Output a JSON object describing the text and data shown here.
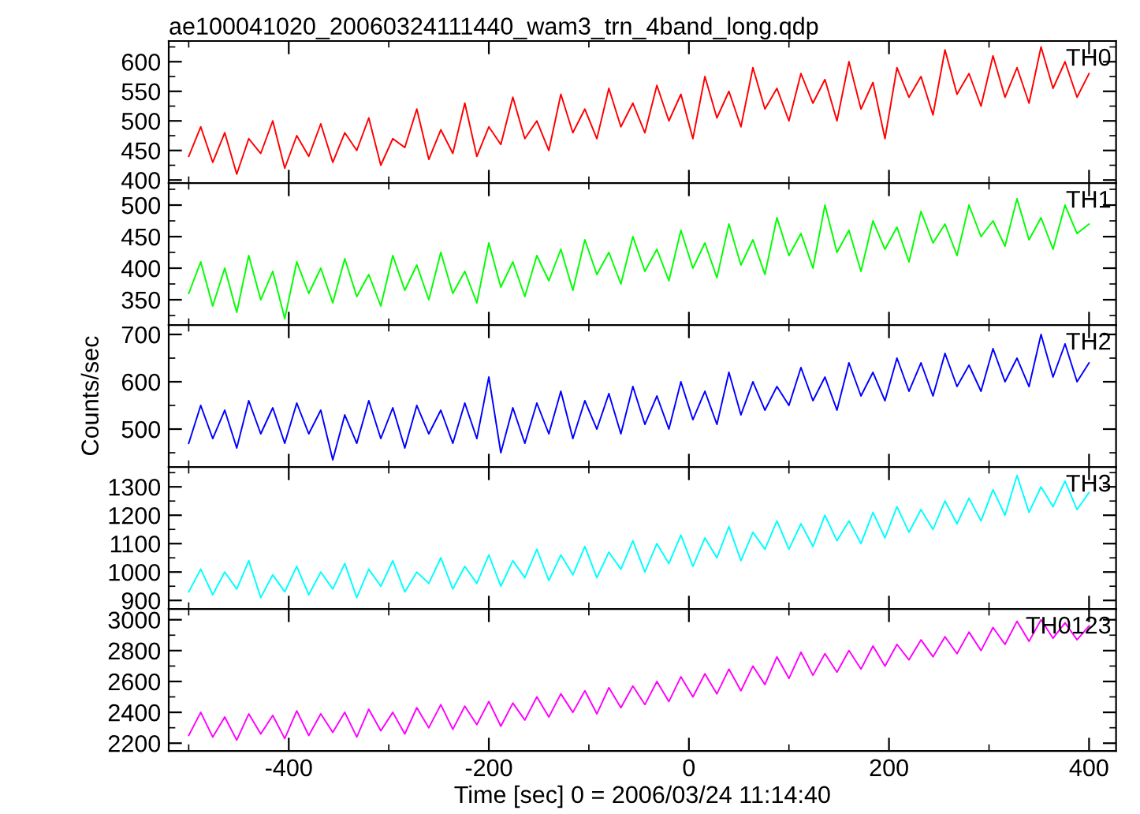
{
  "chart_data": [
    {
      "type": "line",
      "title": "ae100041020_20060324111440_wam3_trn_4band_long.qdp",
      "xlim": [
        -520,
        427
      ],
      "ylim": [
        395,
        635
      ],
      "yticks": [
        400,
        450,
        500,
        550,
        600
      ],
      "xticks": [
        -400,
        -200,
        0,
        200,
        400
      ],
      "tick_labels": "y",
      "legend": false,
      "grid": false,
      "x": [
        -500,
        -488,
        -476,
        -464,
        -452,
        -440,
        -428,
        -416,
        -404,
        -392,
        -380,
        -368,
        -356,
        -344,
        -332,
        -320,
        -308,
        -296,
        -284,
        -272,
        -260,
        -248,
        -236,
        -224,
        -212,
        -200,
        -188,
        -176,
        -164,
        -152,
        -140,
        -128,
        -116,
        -104,
        -92,
        -80,
        -68,
        -56,
        -44,
        -32,
        -20,
        -8,
        4,
        16,
        28,
        40,
        52,
        64,
        76,
        88,
        100,
        112,
        124,
        136,
        148,
        160,
        172,
        184,
        196,
        208,
        220,
        232,
        244,
        256,
        268,
        280,
        292,
        304,
        316,
        328,
        340,
        352,
        364,
        376,
        388,
        400
      ],
      "series": [
        {
          "name": "TH0",
          "color": "#ff0000",
          "values": [
            440,
            490,
            430,
            480,
            410,
            470,
            445,
            500,
            420,
            475,
            440,
            495,
            430,
            480,
            450,
            505,
            425,
            470,
            455,
            520,
            435,
            485,
            445,
            530,
            440,
            490,
            460,
            540,
            470,
            500,
            450,
            545,
            480,
            520,
            470,
            555,
            490,
            530,
            480,
            560,
            500,
            545,
            470,
            575,
            505,
            550,
            490,
            590,
            520,
            555,
            500,
            580,
            530,
            570,
            500,
            600,
            520,
            565,
            470,
            590,
            540,
            575,
            510,
            620,
            545,
            580,
            525,
            610,
            540,
            590,
            530,
            625,
            555,
            600,
            540,
            580
          ]
        }
      ]
    },
    {
      "type": "line",
      "xlim": [
        -520,
        427
      ],
      "ylim": [
        310,
        535
      ],
      "yticks": [
        350,
        400,
        450,
        500
      ],
      "xticks": [
        -400,
        -200,
        0,
        200,
        400
      ],
      "tick_labels": "y",
      "legend": false,
      "grid": false,
      "x": [
        -500,
        -488,
        -476,
        -464,
        -452,
        -440,
        -428,
        -416,
        -404,
        -392,
        -380,
        -368,
        -356,
        -344,
        -332,
        -320,
        -308,
        -296,
        -284,
        -272,
        -260,
        -248,
        -236,
        -224,
        -212,
        -200,
        -188,
        -176,
        -164,
        -152,
        -140,
        -128,
        -116,
        -104,
        -92,
        -80,
        -68,
        -56,
        -44,
        -32,
        -20,
        -8,
        4,
        16,
        28,
        40,
        52,
        64,
        76,
        88,
        100,
        112,
        124,
        136,
        148,
        160,
        172,
        184,
        196,
        208,
        220,
        232,
        244,
        256,
        268,
        280,
        292,
        304,
        316,
        328,
        340,
        352,
        364,
        376,
        388,
        400
      ],
      "series": [
        {
          "name": "TH1",
          "color": "#00ff00",
          "values": [
            360,
            410,
            340,
            400,
            330,
            420,
            350,
            395,
            320,
            410,
            360,
            400,
            345,
            415,
            355,
            390,
            340,
            420,
            365,
            405,
            350,
            425,
            360,
            395,
            345,
            440,
            370,
            410,
            355,
            420,
            380,
            430,
            365,
            445,
            390,
            425,
            375,
            450,
            395,
            430,
            380,
            460,
            400,
            440,
            385,
            470,
            405,
            445,
            390,
            480,
            420,
            455,
            400,
            500,
            425,
            460,
            395,
            475,
            430,
            465,
            410,
            490,
            440,
            470,
            420,
            500,
            450,
            475,
            435,
            510,
            445,
            480,
            430,
            500,
            455,
            470
          ]
        }
      ]
    },
    {
      "type": "line",
      "xlim": [
        -520,
        427
      ],
      "ylim": [
        420,
        720
      ],
      "yticks": [
        500,
        600,
        700
      ],
      "xticks": [
        -400,
        -200,
        0,
        200,
        400
      ],
      "tick_labels": "y",
      "legend": false,
      "grid": false,
      "ylabel": "Counts/sec",
      "x": [
        -500,
        -488,
        -476,
        -464,
        -452,
        -440,
        -428,
        -416,
        -404,
        -392,
        -380,
        -368,
        -356,
        -344,
        -332,
        -320,
        -308,
        -296,
        -284,
        -272,
        -260,
        -248,
        -236,
        -224,
        -212,
        -200,
        -188,
        -176,
        -164,
        -152,
        -140,
        -128,
        -116,
        -104,
        -92,
        -80,
        -68,
        -56,
        -44,
        -32,
        -20,
        -8,
        4,
        16,
        28,
        40,
        52,
        64,
        76,
        88,
        100,
        112,
        124,
        136,
        148,
        160,
        172,
        184,
        196,
        208,
        220,
        232,
        244,
        256,
        268,
        280,
        292,
        304,
        316,
        328,
        340,
        352,
        364,
        376,
        388,
        400
      ],
      "series": [
        {
          "name": "TH2",
          "color": "#0000ff",
          "values": [
            470,
            550,
            480,
            540,
            460,
            560,
            490,
            545,
            470,
            555,
            490,
            540,
            435,
            530,
            470,
            560,
            480,
            545,
            460,
            550,
            490,
            540,
            470,
            555,
            480,
            610,
            450,
            545,
            470,
            555,
            490,
            580,
            480,
            560,
            500,
            575,
            490,
            590,
            510,
            570,
            500,
            600,
            520,
            580,
            510,
            620,
            530,
            600,
            540,
            590,
            550,
            630,
            560,
            610,
            540,
            640,
            570,
            620,
            560,
            650,
            580,
            640,
            570,
            660,
            590,
            635,
            580,
            670,
            600,
            650,
            590,
            700,
            610,
            680,
            600,
            640
          ]
        }
      ]
    },
    {
      "type": "line",
      "xlim": [
        -520,
        427
      ],
      "ylim": [
        870,
        1370
      ],
      "yticks": [
        900,
        1000,
        1100,
        1200,
        1300
      ],
      "xticks": [
        -400,
        -200,
        0,
        200,
        400
      ],
      "tick_labels": "y",
      "legend": false,
      "grid": false,
      "x": [
        -500,
        -488,
        -476,
        -464,
        -452,
        -440,
        -428,
        -416,
        -404,
        -392,
        -380,
        -368,
        -356,
        -344,
        -332,
        -320,
        -308,
        -296,
        -284,
        -272,
        -260,
        -248,
        -236,
        -224,
        -212,
        -200,
        -188,
        -176,
        -164,
        -152,
        -140,
        -128,
        -116,
        -104,
        -92,
        -80,
        -68,
        -56,
        -44,
        -32,
        -20,
        -8,
        4,
        16,
        28,
        40,
        52,
        64,
        76,
        88,
        100,
        112,
        124,
        136,
        148,
        160,
        172,
        184,
        196,
        208,
        220,
        232,
        244,
        256,
        268,
        280,
        292,
        304,
        316,
        328,
        340,
        352,
        364,
        376,
        388,
        400
      ],
      "series": [
        {
          "name": "TH3",
          "color": "#00ffff",
          "values": [
            930,
            1010,
            920,
            1000,
            940,
            1040,
            910,
            990,
            930,
            1020,
            920,
            1000,
            940,
            1030,
            910,
            1010,
            950,
            1040,
            930,
            1000,
            960,
            1050,
            940,
            1020,
            960,
            1060,
            950,
            1040,
            980,
            1080,
            970,
            1060,
            990,
            1090,
            980,
            1070,
            1010,
            1110,
            1000,
            1100,
            1030,
            1130,
            1020,
            1120,
            1050,
            1160,
            1040,
            1140,
            1080,
            1180,
            1080,
            1170,
            1090,
            1200,
            1110,
            1180,
            1100,
            1210,
            1120,
            1230,
            1140,
            1220,
            1150,
            1250,
            1170,
            1260,
            1180,
            1290,
            1200,
            1340,
            1210,
            1300,
            1230,
            1320,
            1220,
            1280
          ]
        }
      ]
    },
    {
      "type": "line",
      "xlim": [
        -520,
        427
      ],
      "ylim": [
        2150,
        3070
      ],
      "yticks": [
        2200,
        2400,
        2600,
        2800,
        3000
      ],
      "xticks": [
        -400,
        -200,
        0,
        200,
        400
      ],
      "legend": false,
      "grid": false,
      "xlabel": "Time [sec] 0 = 2006/03/24 11:14:40",
      "x": [
        -500,
        -488,
        -476,
        -464,
        -452,
        -440,
        -428,
        -416,
        -404,
        -392,
        -380,
        -368,
        -356,
        -344,
        -332,
        -320,
        -308,
        -296,
        -284,
        -272,
        -260,
        -248,
        -236,
        -224,
        -212,
        -200,
        -188,
        -176,
        -164,
        -152,
        -140,
        -128,
        -116,
        -104,
        -92,
        -80,
        -68,
        -56,
        -44,
        -32,
        -20,
        -8,
        4,
        16,
        28,
        40,
        52,
        64,
        76,
        88,
        100,
        112,
        124,
        136,
        148,
        160,
        172,
        184,
        196,
        208,
        220,
        232,
        244,
        256,
        268,
        280,
        292,
        304,
        316,
        328,
        340,
        352,
        364,
        376,
        388,
        400
      ],
      "series": [
        {
          "name": "TH0123",
          "color": "#ff00ff",
          "values": [
            2250,
            2400,
            2240,
            2370,
            2220,
            2390,
            2260,
            2380,
            2230,
            2410,
            2250,
            2390,
            2270,
            2400,
            2240,
            2420,
            2280,
            2400,
            2260,
            2430,
            2300,
            2450,
            2290,
            2440,
            2320,
            2470,
            2310,
            2460,
            2350,
            2500,
            2370,
            2520,
            2400,
            2540,
            2390,
            2560,
            2430,
            2570,
            2450,
            2600,
            2470,
            2630,
            2500,
            2650,
            2520,
            2680,
            2540,
            2700,
            2580,
            2760,
            2620,
            2790,
            2640,
            2780,
            2660,
            2800,
            2680,
            2830,
            2700,
            2840,
            2740,
            2870,
            2760,
            2890,
            2780,
            2920,
            2800,
            2950,
            2840,
            2990,
            2860,
            3000,
            2880,
            2980,
            2870,
            2960
          ]
        }
      ]
    }
  ]
}
